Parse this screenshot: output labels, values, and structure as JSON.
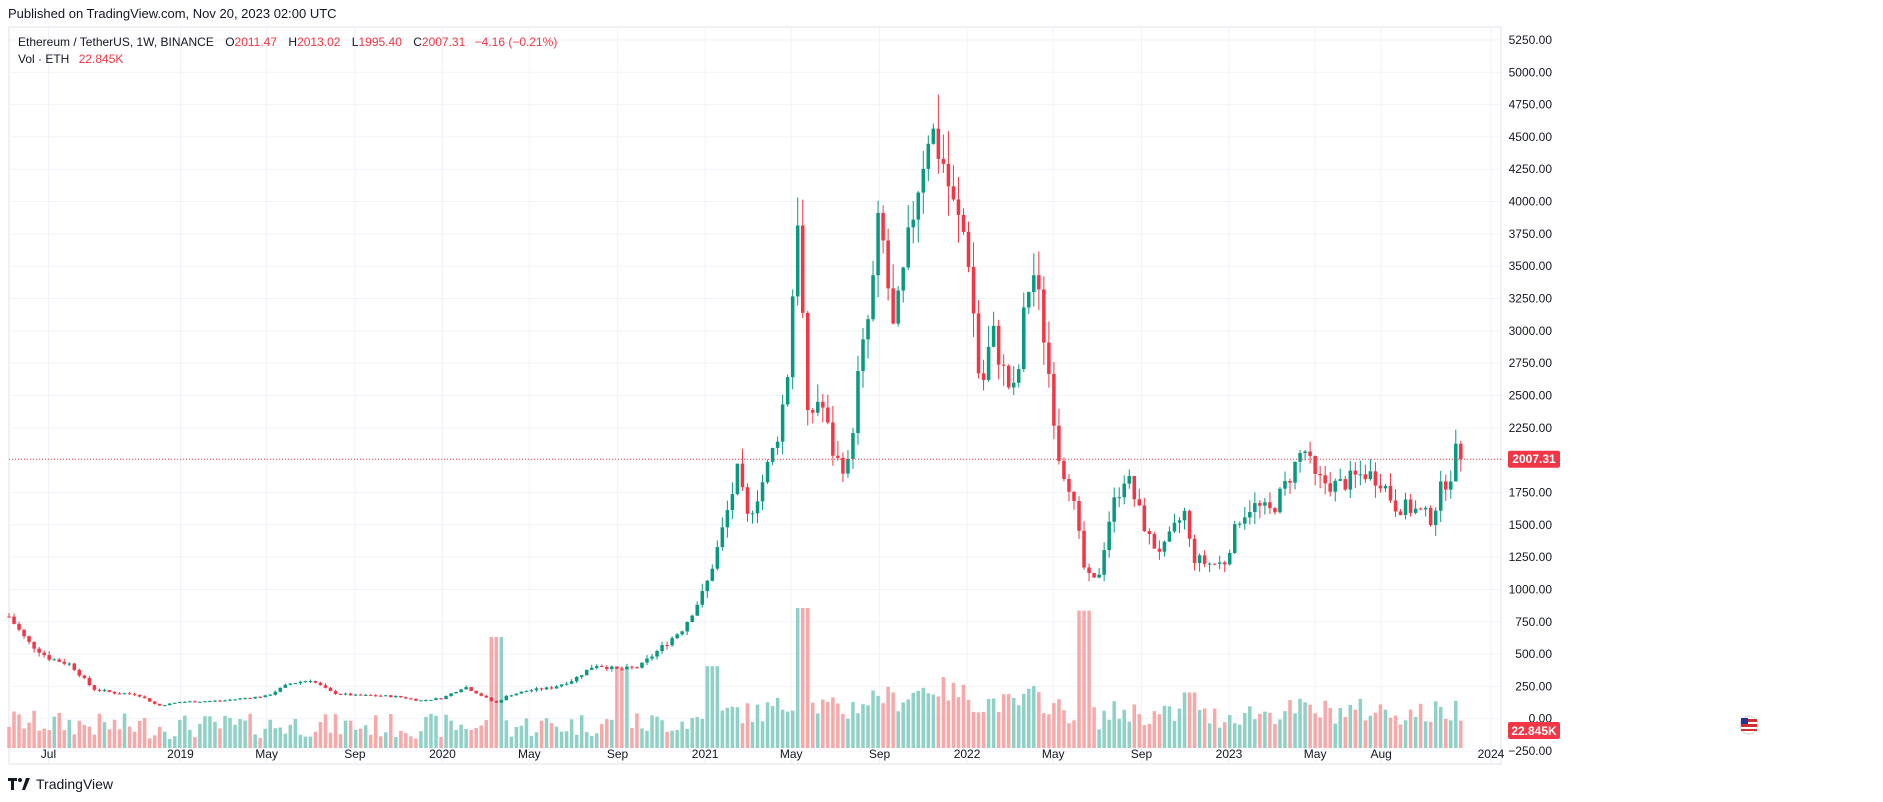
{
  "header": {
    "published": "Published on TradingView.com, Nov 20, 2023 02:00 UTC"
  },
  "legend": {
    "symbol": "Ethereum / TetherUS, 1W, BINANCE",
    "open_label": "O",
    "open": "2011.47",
    "high_label": "H",
    "high": "2013.02",
    "low_label": "L",
    "low": "1995.40",
    "close_label": "C",
    "close": "2007.31",
    "change": "−4.16 (−0.21%)",
    "vol_label": "Vol · ETH",
    "vol_value": "22.845K"
  },
  "price_badge": "2007.31",
  "volume_badge": "22.845K",
  "footer": {
    "brand": "TradingView"
  },
  "colors": {
    "up": "#089981",
    "down": "#f23645",
    "vol_up": "#8fd1c7",
    "vol_down": "#f7a9a9",
    "grid": "#f0f3fa"
  },
  "chart_data": {
    "type": "candlestick",
    "symbol": "ETHUSDT",
    "interval": "1W",
    "y_ticks": [
      5250,
      5000,
      4750,
      4500,
      4250,
      4000,
      3750,
      3500,
      3250,
      3000,
      2750,
      2500,
      2250,
      1750,
      1500,
      1250,
      1000,
      750,
      500,
      250,
      0,
      -250
    ],
    "y_tick_labels": [
      "5250.00",
      "5000.00",
      "4750.00",
      "4500.00",
      "4250.00",
      "4000.00",
      "3750.00",
      "3500.00",
      "3250.00",
      "3000.00",
      "2750.00",
      "2500.00",
      "2250.00",
      "1750.00",
      "1500.00",
      "1250.00",
      "1000.00",
      "750.00",
      "500.00",
      "250.00",
      "0.00",
      "−250.00"
    ],
    "ylim": [
      -350,
      5350
    ],
    "x_labels": [
      {
        "date": "2018-07-01",
        "label": "Jul"
      },
      {
        "date": "2019-01-01",
        "label": "2019"
      },
      {
        "date": "2019-05-01",
        "label": "May"
      },
      {
        "date": "2019-09-01",
        "label": "Sep"
      },
      {
        "date": "2020-01-01",
        "label": "2020"
      },
      {
        "date": "2020-05-01",
        "label": "May"
      },
      {
        "date": "2020-09-01",
        "label": "Sep"
      },
      {
        "date": "2021-01-01",
        "label": "2021"
      },
      {
        "date": "2021-05-01",
        "label": "May"
      },
      {
        "date": "2021-09-01",
        "label": "Sep"
      },
      {
        "date": "2022-01-01",
        "label": "2022"
      },
      {
        "date": "2022-05-01",
        "label": "May"
      },
      {
        "date": "2022-09-01",
        "label": "Sep"
      },
      {
        "date": "2023-01-01",
        "label": "2023"
      },
      {
        "date": "2023-05-01",
        "label": "May"
      },
      {
        "date": "2023-08-01",
        "label": "Aug"
      },
      {
        "date": "2024-01-01",
        "label": "2024"
      }
    ],
    "x_start": "2018-05-07",
    "x_end": "2024-01-15",
    "current_price": 2007.31,
    "close_path": [
      [
        "2018-05-07",
        790
      ],
      [
        "2018-06-01",
        600
      ],
      [
        "2018-07-01",
        470
      ],
      [
        "2018-08-01",
        420
      ],
      [
        "2018-09-01",
        230
      ],
      [
        "2018-10-01",
        200
      ],
      [
        "2018-11-01",
        190
      ],
      [
        "2018-12-01",
        100
      ],
      [
        "2019-01-01",
        130
      ],
      [
        "2019-02-01",
        135
      ],
      [
        "2019-03-01",
        140
      ],
      [
        "2019-04-01",
        160
      ],
      [
        "2019-05-01",
        175
      ],
      [
        "2019-06-01",
        270
      ],
      [
        "2019-07-01",
        300
      ],
      [
        "2019-08-01",
        200
      ],
      [
        "2019-09-01",
        180
      ],
      [
        "2019-10-01",
        180
      ],
      [
        "2019-11-01",
        170
      ],
      [
        "2019-12-01",
        140
      ],
      [
        "2020-01-01",
        160
      ],
      [
        "2020-02-01",
        250
      ],
      [
        "2020-03-15",
        120
      ],
      [
        "2020-04-01",
        180
      ],
      [
        "2020-05-01",
        220
      ],
      [
        "2020-06-01",
        240
      ],
      [
        "2020-07-01",
        300
      ],
      [
        "2020-08-01",
        420
      ],
      [
        "2020-09-01",
        380
      ],
      [
        "2020-10-01",
        400
      ],
      [
        "2020-11-01",
        550
      ],
      [
        "2020-12-01",
        700
      ],
      [
        "2021-01-01",
        1000
      ],
      [
        "2021-01-20",
        1350
      ],
      [
        "2021-02-15",
        1900
      ],
      [
        "2021-03-01",
        1550
      ],
      [
        "2021-03-20",
        1800
      ],
      [
        "2021-04-10",
        2150
      ],
      [
        "2021-04-25",
        2600
      ],
      [
        "2021-05-10",
        3900
      ],
      [
        "2021-05-24",
        2300
      ],
      [
        "2021-06-10",
        2500
      ],
      [
        "2021-07-01",
        2000
      ],
      [
        "2021-07-20",
        1950
      ],
      [
        "2021-08-01",
        2600
      ],
      [
        "2021-08-20",
        3200
      ],
      [
        "2021-09-01",
        3900
      ],
      [
        "2021-09-20",
        3000
      ],
      [
        "2021-10-01",
        3300
      ],
      [
        "2021-10-20",
        4000
      ],
      [
        "2021-11-10",
        4600
      ],
      [
        "2021-11-29",
        4300
      ],
      [
        "2021-12-15",
        3900
      ],
      [
        "2022-01-01",
        3700
      ],
      [
        "2022-01-20",
        2500
      ],
      [
        "2022-02-05",
        3000
      ],
      [
        "2022-02-25",
        2600
      ],
      [
        "2022-03-10",
        2500
      ],
      [
        "2022-03-25",
        3300
      ],
      [
        "2022-04-05",
        3450
      ],
      [
        "2022-04-20",
        2900
      ],
      [
        "2022-05-10",
        2000
      ],
      [
        "2022-05-25",
        1800
      ],
      [
        "2022-06-15",
        1100
      ],
      [
        "2022-07-01",
        1050
      ],
      [
        "2022-07-20",
        1600
      ],
      [
        "2022-08-10",
        1900
      ],
      [
        "2022-09-01",
        1550
      ],
      [
        "2022-09-15",
        1350
      ],
      [
        "2022-10-01",
        1300
      ],
      [
        "2022-10-20",
        1500
      ],
      [
        "2022-11-01",
        1600
      ],
      [
        "2022-11-10",
        1250
      ],
      [
        "2022-12-01",
        1200
      ],
      [
        "2022-12-25",
        1200
      ],
      [
        "2023-01-15",
        1550
      ],
      [
        "2023-02-01",
        1650
      ],
      [
        "2023-03-01",
        1600
      ],
      [
        "2023-03-20",
        1800
      ],
      [
        "2023-04-15",
        2100
      ],
      [
        "2023-05-01",
        1850
      ],
      [
        "2023-06-01",
        1800
      ],
      [
        "2023-06-20",
        1850
      ],
      [
        "2023-07-10",
        1900
      ],
      [
        "2023-08-01",
        1850
      ],
      [
        "2023-08-20",
        1650
      ],
      [
        "2023-09-15",
        1620
      ],
      [
        "2023-10-10",
        1550
      ],
      [
        "2023-10-25",
        1800
      ],
      [
        "2023-11-06",
        1900
      ],
      [
        "2023-11-13",
        2050
      ],
      [
        "2023-11-20",
        2007.31
      ]
    ],
    "volume_peaks": [
      [
        "2020-03-15",
        840
      ],
      [
        "2020-09-05",
        610
      ],
      [
        "2021-01-10",
        620
      ],
      [
        "2021-05-20",
        1060
      ],
      [
        "2022-06-15",
        1040
      ],
      [
        "2022-11-10",
        420
      ]
    ]
  }
}
